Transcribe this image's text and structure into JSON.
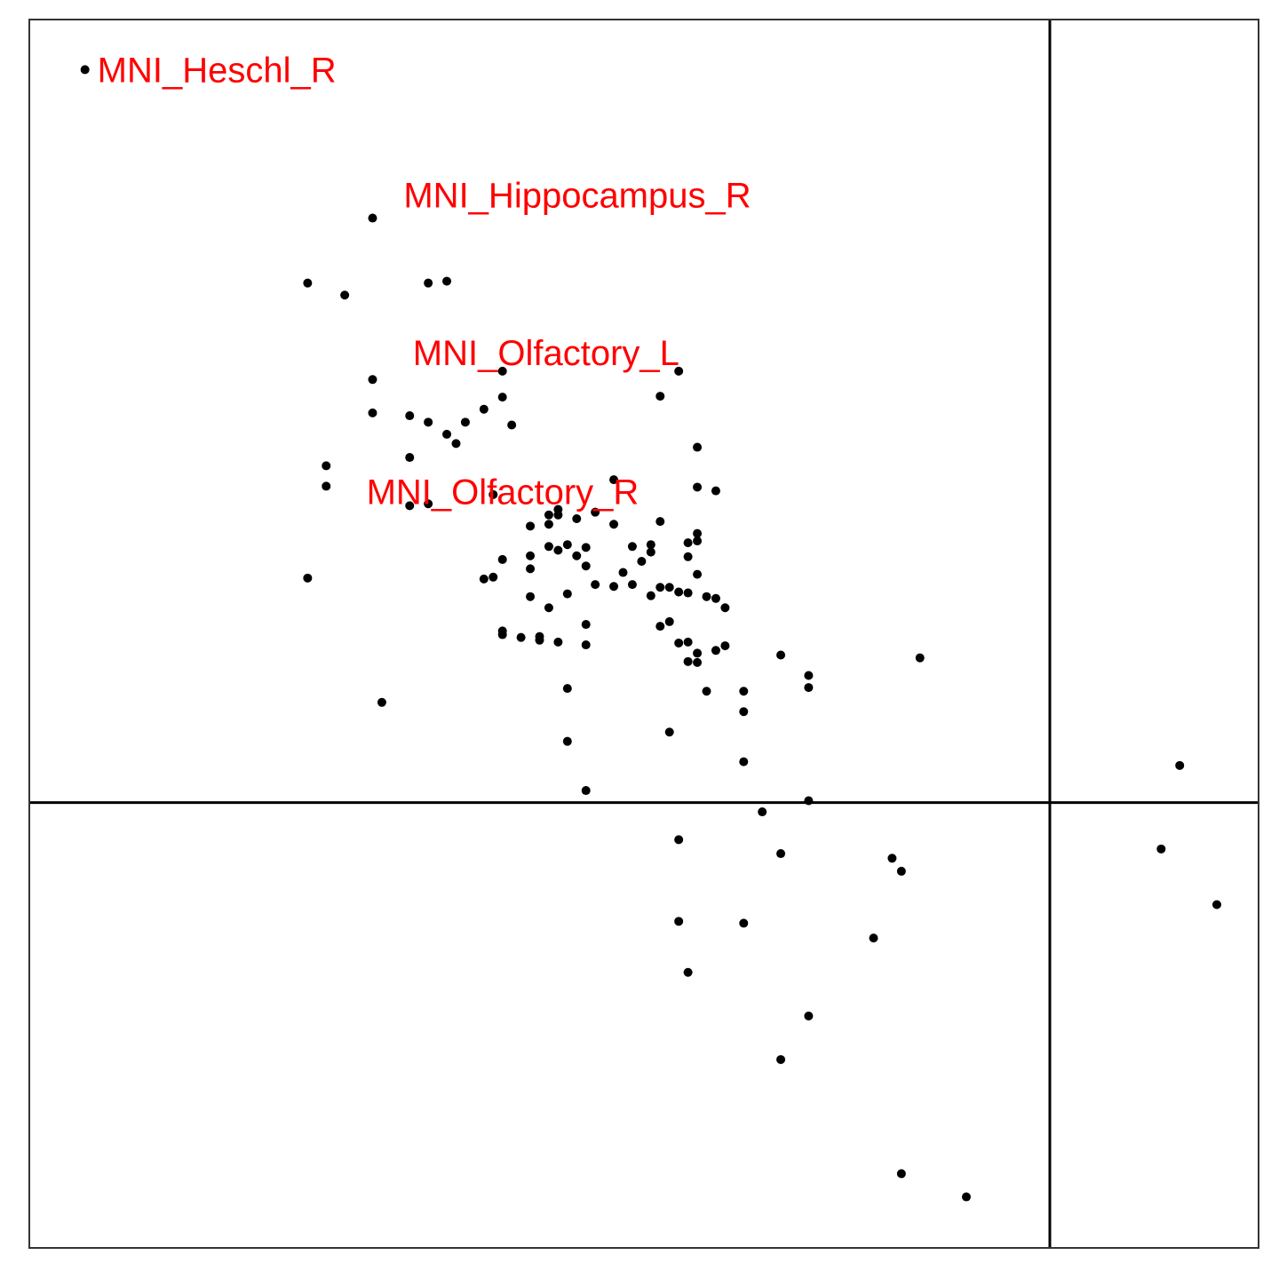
{
  "chart_data": {
    "type": "scatter",
    "title": "",
    "xlabel": "",
    "ylabel": "",
    "xlim": [
      -1.1,
      0.225
    ],
    "ylim": [
      -0.48,
      0.844
    ],
    "grid": false,
    "reference_lines": {
      "x": 0,
      "y": 0
    },
    "point_color": "#000000",
    "label_color": "#ff0000",
    "frame_color": "#333333",
    "labels": [
      {
        "text": "MNI_Heschl_R",
        "x": -1.04,
        "y": 0.79
      },
      {
        "text": "MNI_Hippocampus_R",
        "x": -0.71,
        "y": 0.655
      },
      {
        "text": "MNI_Olfactory_L",
        "x": -0.7,
        "y": 0.485
      },
      {
        "text": "MNI_Olfactory_R",
        "x": -0.75,
        "y": 0.335
      }
    ],
    "points": [
      [
        -1.04,
        0.79
      ],
      [
        -0.73,
        0.63
      ],
      [
        -0.8,
        0.56
      ],
      [
        -0.76,
        0.547
      ],
      [
        -0.67,
        0.56
      ],
      [
        -0.65,
        0.562
      ],
      [
        -0.59,
        0.465
      ],
      [
        -0.73,
        0.456
      ],
      [
        -0.59,
        0.437
      ],
      [
        -0.61,
        0.424
      ],
      [
        -0.63,
        0.41
      ],
      [
        -0.65,
        0.397
      ],
      [
        -0.73,
        0.42
      ],
      [
        -0.69,
        0.417
      ],
      [
        -0.67,
        0.41
      ],
      [
        -0.64,
        0.387
      ],
      [
        -0.58,
        0.407
      ],
      [
        -0.78,
        0.363
      ],
      [
        -0.69,
        0.372
      ],
      [
        -0.78,
        0.341
      ],
      [
        -0.69,
        0.32
      ],
      [
        -0.6,
        0.332
      ],
      [
        -0.67,
        0.322
      ],
      [
        -0.47,
        0.348
      ],
      [
        -0.4,
        0.465
      ],
      [
        -0.42,
        0.438
      ],
      [
        -0.38,
        0.383
      ],
      [
        -0.36,
        0.336
      ],
      [
        -0.38,
        0.34
      ],
      [
        -0.49,
        0.313
      ],
      [
        -0.54,
        0.31
      ],
      [
        -0.53,
        0.316
      ],
      [
        -0.53,
        0.31
      ],
      [
        -0.51,
        0.306
      ],
      [
        -0.54,
        0.3
      ],
      [
        -0.56,
        0.298
      ],
      [
        -0.47,
        0.3
      ],
      [
        -0.42,
        0.303
      ],
      [
        -0.38,
        0.29
      ],
      [
        -0.38,
        0.282
      ],
      [
        -0.39,
        0.28
      ],
      [
        -0.5,
        0.275
      ],
      [
        -0.52,
        0.278
      ],
      [
        -0.54,
        0.276
      ],
      [
        -0.43,
        0.278
      ],
      [
        -0.45,
        0.276
      ],
      [
        -0.51,
        0.266
      ],
      [
        -0.53,
        0.272
      ],
      [
        -0.56,
        0.266
      ],
      [
        -0.59,
        0.262
      ],
      [
        -0.43,
        0.27
      ],
      [
        -0.39,
        0.265
      ],
      [
        -0.44,
        0.26
      ],
      [
        -0.56,
        0.252
      ],
      [
        -0.5,
        0.255
      ],
      [
        -0.46,
        0.248
      ],
      [
        -0.38,
        0.246
      ],
      [
        -0.8,
        0.242
      ],
      [
        -0.6,
        0.243
      ],
      [
        -0.61,
        0.241
      ],
      [
        -0.45,
        0.235
      ],
      [
        -0.47,
        0.233
      ],
      [
        -0.49,
        0.235
      ],
      [
        -0.41,
        0.232
      ],
      [
        -0.42,
        0.232
      ],
      [
        -0.4,
        0.227
      ],
      [
        -0.39,
        0.226
      ],
      [
        -0.43,
        0.223
      ],
      [
        -0.37,
        0.222
      ],
      [
        -0.36,
        0.22
      ],
      [
        -0.52,
        0.225
      ],
      [
        -0.56,
        0.222
      ],
      [
        -0.54,
        0.21
      ],
      [
        -0.35,
        0.21
      ],
      [
        -0.41,
        0.195
      ],
      [
        -0.42,
        0.19
      ],
      [
        -0.5,
        0.192
      ],
      [
        -0.59,
        0.185
      ],
      [
        -0.59,
        0.181
      ],
      [
        -0.55,
        0.179
      ],
      [
        -0.57,
        0.178
      ],
      [
        -0.53,
        0.173
      ],
      [
        -0.4,
        0.172
      ],
      [
        -0.36,
        0.164
      ],
      [
        -0.35,
        0.169
      ],
      [
        -0.39,
        0.152
      ],
      [
        -0.38,
        0.161
      ],
      [
        -0.39,
        0.173
      ],
      [
        -0.29,
        0.159
      ],
      [
        -0.14,
        0.156
      ],
      [
        -0.26,
        0.137
      ],
      [
        -0.37,
        0.12
      ],
      [
        -0.52,
        0.123
      ],
      [
        -0.5,
        0.17
      ],
      [
        -0.55,
        0.175
      ],
      [
        -0.38,
        0.151
      ],
      [
        -0.33,
        0.12
      ],
      [
        -0.26,
        0.124
      ],
      [
        -0.33,
        0.098
      ],
      [
        -0.72,
        0.108
      ],
      [
        -0.52,
        0.066
      ],
      [
        -0.41,
        0.076
      ],
      [
        -0.33,
        0.044
      ],
      [
        -0.5,
        0.013
      ],
      [
        -0.26,
        0.002
      ],
      [
        -0.31,
        -0.01
      ],
      [
        -0.4,
        -0.04
      ],
      [
        -0.29,
        -0.055
      ],
      [
        -0.17,
        -0.06
      ],
      [
        -0.16,
        -0.074
      ],
      [
        -0.4,
        -0.128
      ],
      [
        -0.33,
        -0.13
      ],
      [
        -0.19,
        -0.146
      ],
      [
        -0.39,
        -0.183
      ],
      [
        -0.26,
        -0.23
      ],
      [
        -0.29,
        -0.277
      ],
      [
        -0.16,
        -0.4
      ],
      [
        -0.09,
        -0.425
      ],
      [
        0.14,
        0.04
      ],
      [
        0.12,
        -0.05
      ],
      [
        0.18,
        -0.11
      ]
    ]
  }
}
